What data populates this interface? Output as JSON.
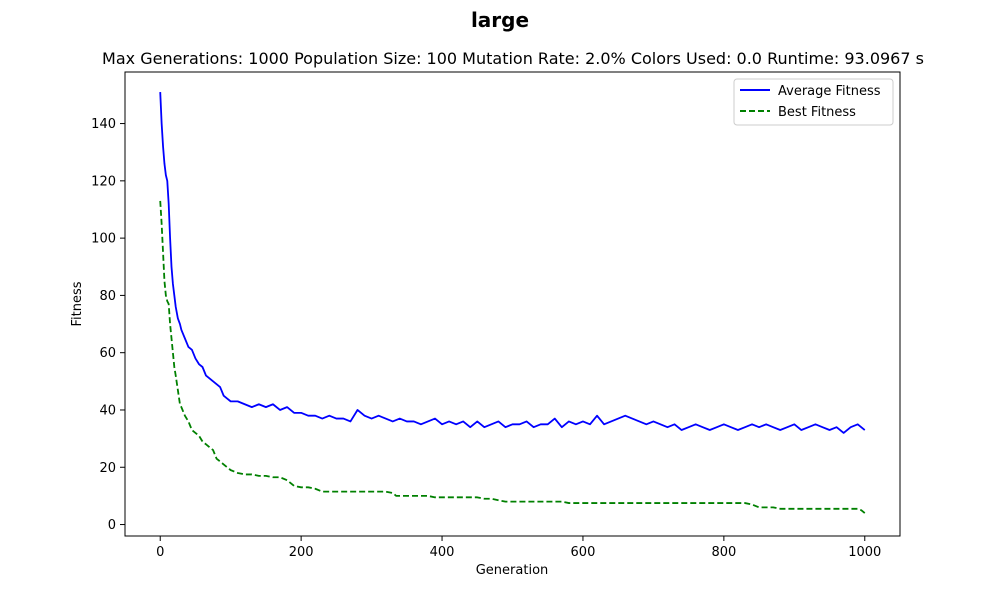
{
  "chart_data": {
    "type": "line",
    "title": "large",
    "subtitle": "Max Generations: 1000  Population Size: 100  Mutation Rate: 2.0%  Colors Used: 0.0  Runtime: 93.0967 s",
    "xlabel": "Generation",
    "ylabel": "Fitness",
    "xlim": [
      -50,
      1050
    ],
    "ylim": [
      -4,
      158
    ],
    "xticks": [
      0,
      200,
      400,
      600,
      800,
      1000
    ],
    "yticks": [
      0,
      20,
      40,
      60,
      80,
      100,
      120,
      140
    ],
    "grid": false,
    "legend_position": "top-right",
    "series": [
      {
        "name": "Average Fitness",
        "color": "#0000ff",
        "style": "solid",
        "x": [
          0,
          2,
          4,
          6,
          8,
          10,
          12,
          14,
          16,
          18,
          20,
          22,
          25,
          28,
          30,
          35,
          40,
          45,
          50,
          55,
          60,
          65,
          70,
          75,
          80,
          85,
          90,
          95,
          100,
          110,
          120,
          130,
          140,
          150,
          160,
          170,
          180,
          190,
          200,
          210,
          220,
          230,
          240,
          250,
          260,
          270,
          280,
          290,
          300,
          310,
          320,
          330,
          340,
          350,
          360,
          370,
          380,
          390,
          400,
          410,
          420,
          430,
          440,
          450,
          460,
          470,
          480,
          490,
          500,
          510,
          520,
          530,
          540,
          550,
          560,
          570,
          580,
          590,
          600,
          610,
          620,
          630,
          640,
          650,
          660,
          670,
          680,
          690,
          700,
          710,
          720,
          730,
          740,
          750,
          760,
          770,
          780,
          790,
          800,
          810,
          820,
          830,
          840,
          850,
          860,
          870,
          880,
          890,
          900,
          910,
          920,
          930,
          940,
          950,
          960,
          970,
          980,
          990,
          1000
        ],
        "values": [
          151,
          140,
          132,
          126,
          122,
          120,
          112,
          100,
          90,
          84,
          80,
          76,
          72,
          70,
          68,
          65,
          62,
          61,
          58,
          56,
          55,
          52,
          51,
          50,
          49,
          48,
          45,
          44,
          43,
          43,
          42,
          41,
          42,
          41,
          42,
          40,
          41,
          39,
          39,
          38,
          38,
          37,
          38,
          37,
          37,
          36,
          40,
          38,
          37,
          38,
          37,
          36,
          37,
          36,
          36,
          35,
          36,
          37,
          35,
          36,
          35,
          36,
          34,
          36,
          34,
          35,
          36,
          34,
          35,
          35,
          36,
          34,
          35,
          35,
          37,
          34,
          36,
          35,
          36,
          35,
          38,
          35,
          36,
          37,
          38,
          37,
          36,
          35,
          36,
          35,
          34,
          35,
          33,
          34,
          35,
          34,
          33,
          34,
          35,
          34,
          33,
          34,
          35,
          34,
          35,
          34,
          33,
          34,
          35,
          33,
          34,
          35,
          34,
          33,
          34,
          32,
          34,
          35,
          33
        ]
      },
      {
        "name": "Best Fitness",
        "color": "#008000",
        "style": "dashed",
        "x": [
          0,
          2,
          4,
          6,
          8,
          10,
          12,
          14,
          16,
          18,
          20,
          22,
          25,
          28,
          30,
          35,
          40,
          45,
          50,
          55,
          60,
          65,
          70,
          75,
          80,
          85,
          90,
          95,
          100,
          110,
          120,
          130,
          140,
          150,
          160,
          170,
          180,
          190,
          200,
          210,
          220,
          230,
          240,
          260,
          280,
          300,
          320,
          330,
          335,
          340,
          360,
          380,
          390,
          400,
          420,
          440,
          450,
          460,
          470,
          480,
          490,
          500,
          520,
          540,
          560,
          570,
          580,
          600,
          620,
          640,
          660,
          680,
          700,
          720,
          740,
          760,
          780,
          800,
          820,
          830,
          840,
          850,
          860,
          870,
          880,
          890,
          900,
          920,
          940,
          960,
          980,
          990,
          995,
          1000
        ],
        "values": [
          113,
          105,
          95,
          85,
          80,
          78,
          77,
          70,
          65,
          60,
          55,
          52,
          47,
          42,
          41,
          38,
          36,
          33,
          32,
          31,
          29,
          28,
          27,
          26,
          23,
          22,
          21,
          20,
          19,
          18,
          17.5,
          17.5,
          17,
          17,
          16.5,
          16.5,
          15.5,
          13.5,
          13,
          13,
          12.5,
          11.5,
          11.5,
          11.5,
          11.5,
          11.5,
          11.5,
          11,
          10,
          10,
          10,
          10,
          9.5,
          9.5,
          9.5,
          9.5,
          9.5,
          9,
          9,
          8.5,
          8,
          8,
          8,
          8,
          8,
          8,
          7.5,
          7.5,
          7.5,
          7.5,
          7.5,
          7.5,
          7.5,
          7.5,
          7.5,
          7.5,
          7.5,
          7.5,
          7.5,
          7.5,
          7,
          6,
          6,
          6,
          5.5,
          5.5,
          5.5,
          5.5,
          5.5,
          5.5,
          5.5,
          5.5,
          5,
          4
        ]
      }
    ]
  }
}
